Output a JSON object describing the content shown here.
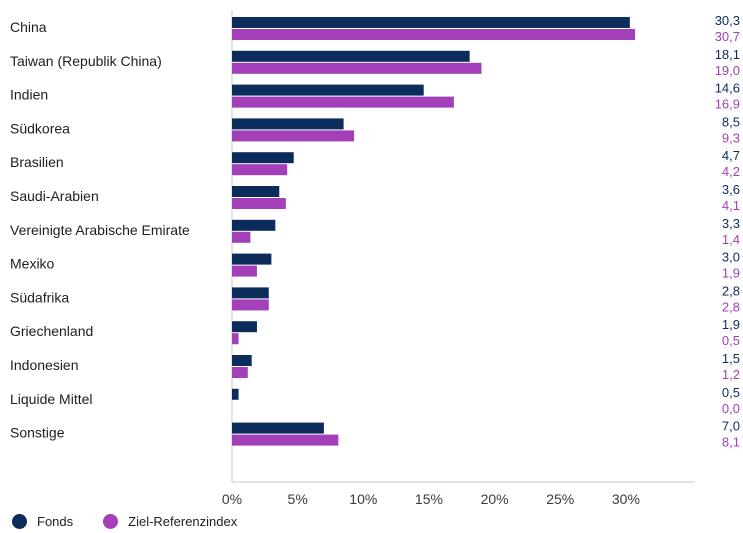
{
  "chart_data": {
    "type": "bar",
    "orientation": "horizontal",
    "categories": [
      "China",
      "Taiwan (Republik China)",
      "Indien",
      "Südkorea",
      "Brasilien",
      "Saudi-Arabien",
      "Vereinigte Arabische Emirate",
      "Mexiko",
      "Südafrika",
      "Griechenland",
      "Indonesien",
      "Liquide Mittel",
      "Sonstige"
    ],
    "series": [
      {
        "name": "Fonds",
        "color": "#0c2c5c",
        "values": [
          30.3,
          18.1,
          14.6,
          8.5,
          4.7,
          3.6,
          3.3,
          3.0,
          2.8,
          1.9,
          1.5,
          0.5,
          7.0
        ],
        "labels": [
          "30,3",
          "18,1",
          "14,6",
          "8,5",
          "4,7",
          "3,6",
          "3,3",
          "3,0",
          "2,8",
          "1,9",
          "1,5",
          "0,5",
          "7,0"
        ]
      },
      {
        "name": "Ziel-Referenzindex",
        "color": "#a23fb9",
        "values": [
          30.7,
          19.0,
          16.9,
          9.3,
          4.2,
          4.1,
          1.4,
          1.9,
          2.8,
          0.5,
          1.2,
          0.0,
          8.1
        ],
        "labels": [
          "30,7",
          "19,0",
          "16,9",
          "9,3",
          "4,2",
          "4,1",
          "1,4",
          "1,9",
          "2,8",
          "0,5",
          "1,2",
          "0,0",
          "8,1"
        ]
      }
    ],
    "xlim": [
      0,
      35
    ],
    "ticks": [
      "0%",
      "5%",
      "10%",
      "15%",
      "20%",
      "25%",
      "30%"
    ],
    "tick_values": [
      0,
      5,
      10,
      15,
      20,
      25,
      30
    ],
    "grid": false,
    "legend_position": "bottom-left"
  }
}
